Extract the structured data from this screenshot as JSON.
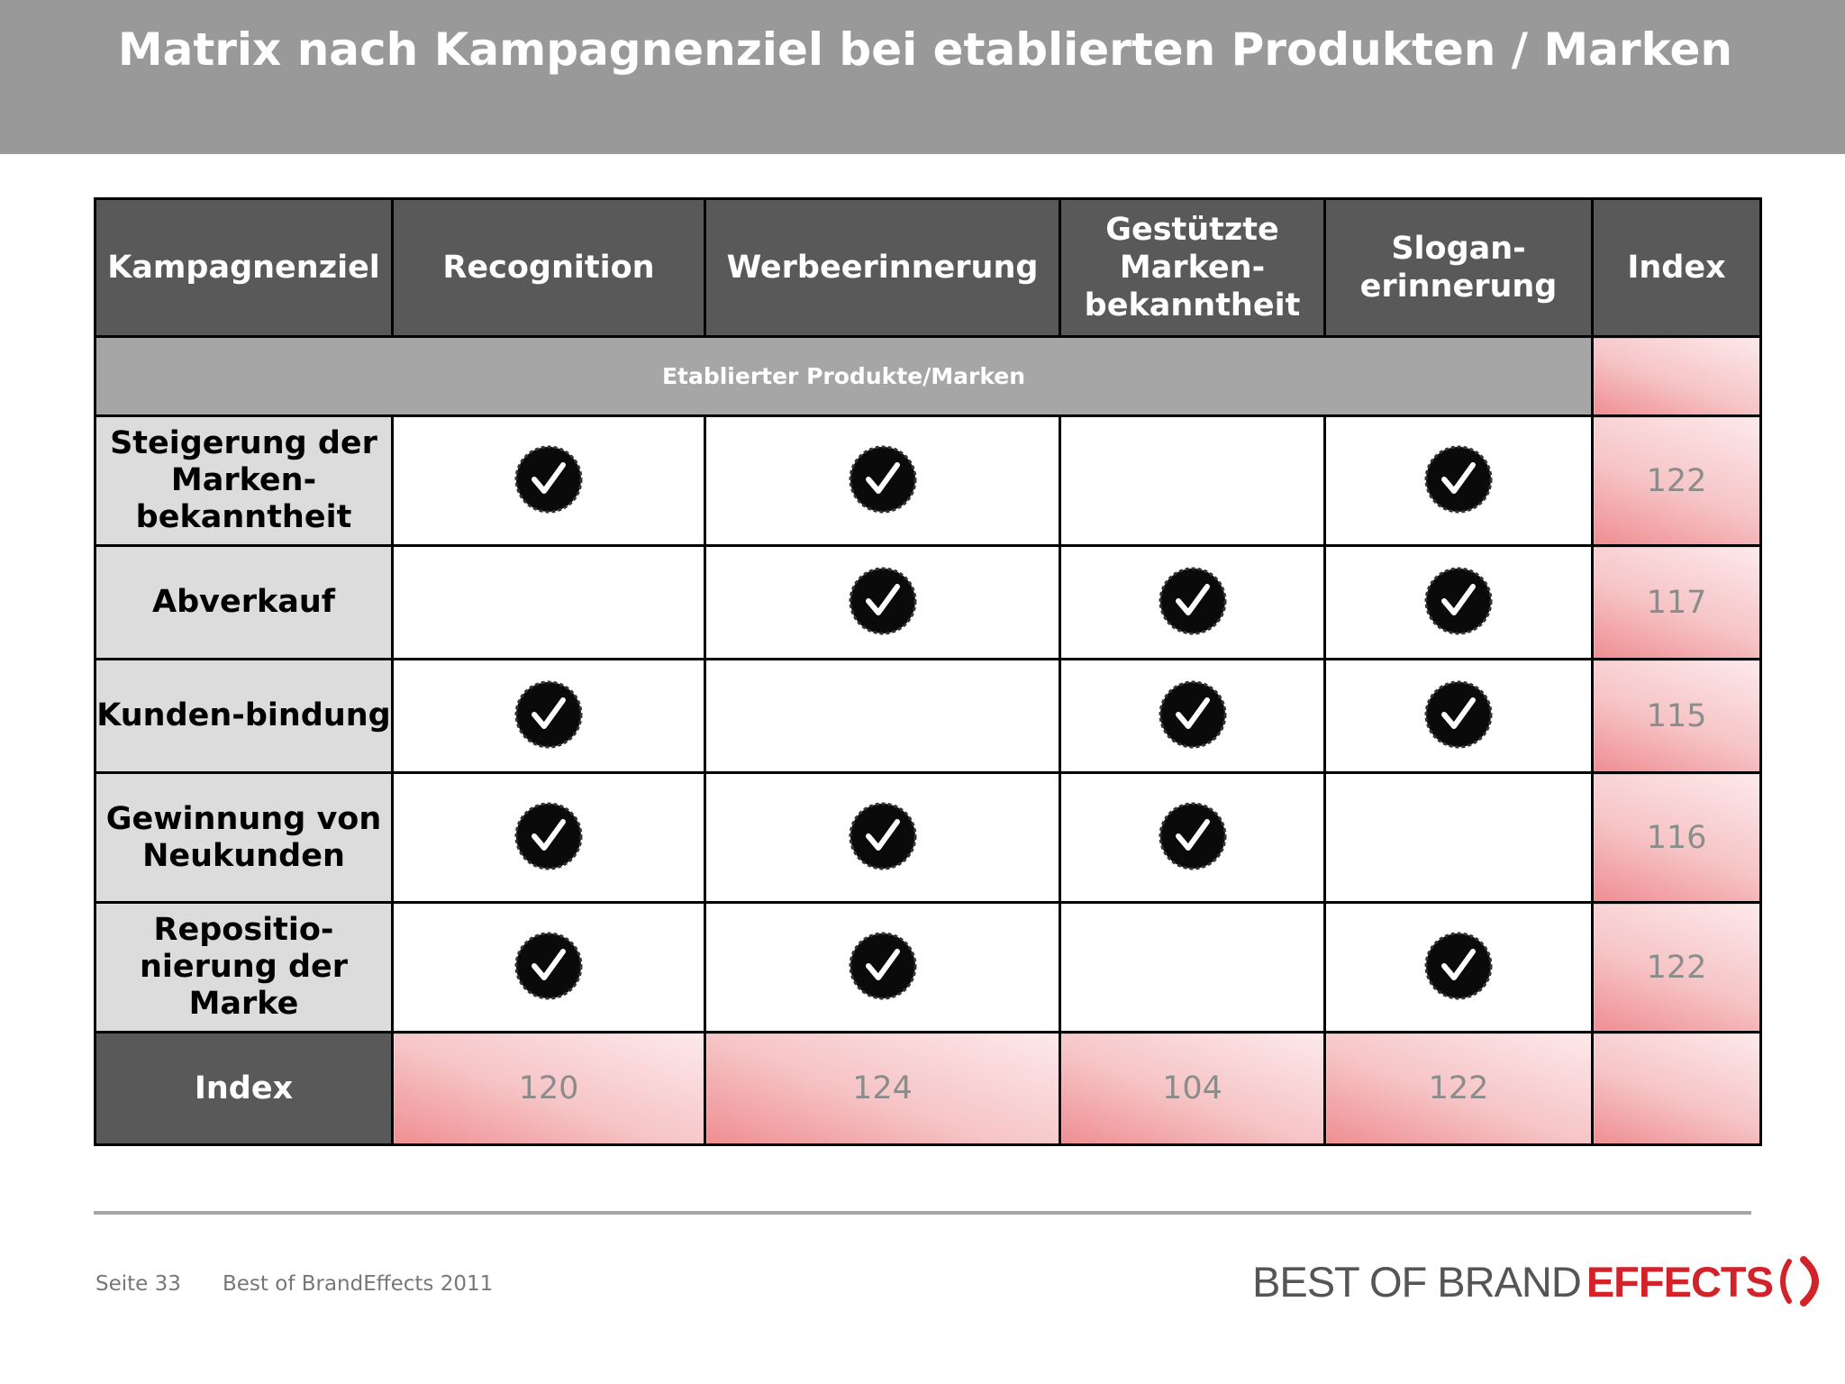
{
  "title": "Matrix nach Kampagnenziel bei etablierten Produkten / Marken",
  "table": {
    "headers": [
      "Kampagnenziel",
      "Recognition",
      "Werbeerinnerung",
      "Gestützte Marken-bekanntheit",
      "Slogan-erinnerung",
      "Index"
    ],
    "section_label": "Etablierter Produkte/Marken",
    "rows": [
      {
        "label": "Steigerung der Marken-bekanntheit",
        "checks": [
          true,
          true,
          false,
          true
        ],
        "index": "122"
      },
      {
        "label": "Abverkauf",
        "checks": [
          false,
          true,
          true,
          true
        ],
        "index": "117"
      },
      {
        "label": "Kunden-bindung",
        "checks": [
          true,
          false,
          true,
          true
        ],
        "index": "115"
      },
      {
        "label": "Gewinnung von Neukunden",
        "checks": [
          true,
          true,
          true,
          false
        ],
        "index": "116"
      },
      {
        "label": "Repositio-nierung der Marke",
        "checks": [
          true,
          true,
          false,
          true
        ],
        "index": "122"
      }
    ],
    "index_row": {
      "label": "Index",
      "values": [
        "120",
        "124",
        "104",
        "122"
      ]
    }
  },
  "footer": {
    "page": "Seite 33",
    "source": "Best of BrandEffects 2011"
  },
  "logo": {
    "part1": "BEST OF BRAND",
    "part2": "EFFECTS"
  },
  "icons": {
    "check": "checkmark-badge-icon",
    "logo_mark": "bracket-logo-icon"
  },
  "colors": {
    "title_bar": "#999999",
    "header_bg": "#595959",
    "accent_red": "#d2232a"
  }
}
